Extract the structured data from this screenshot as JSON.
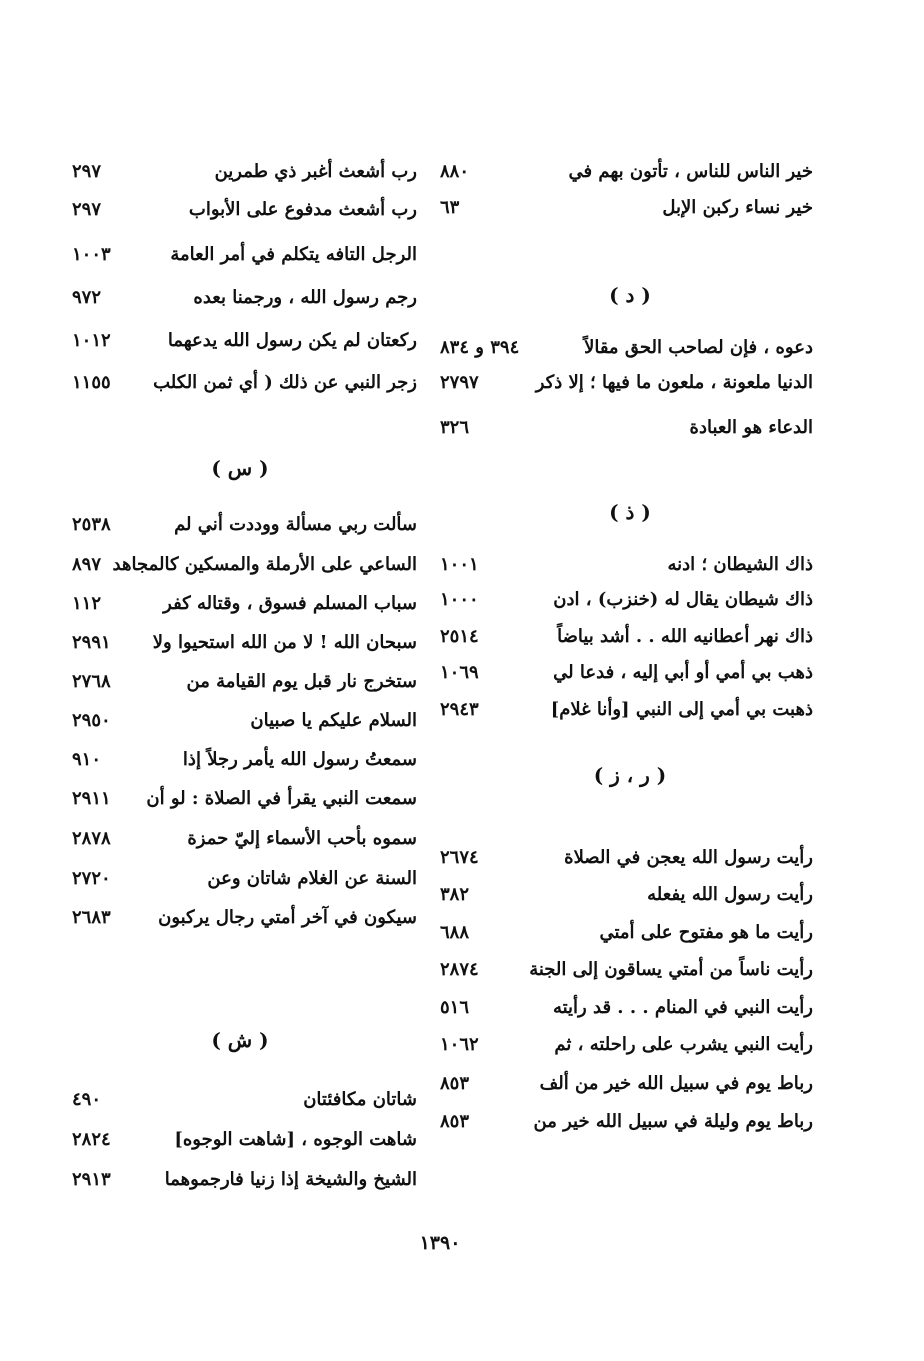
{
  "right_column": {
    "sections": [
      {
        "header": "",
        "entries": [
          {
            "text": "خير الناس للناس ، تأتون بهم في",
            "ref": "٨٨٠"
          },
          {
            "text": "خير نساء ركبن الإبل",
            "ref": "٦٣"
          }
        ]
      },
      {
        "header": "( د )",
        "entries": [
          {
            "text": "دعوه ، فإن لصاحب الحق مقالاً",
            "ref": "٣٩٤ و ٨٣٤"
          },
          {
            "text": "الدنيا ملعونة ، ملعون ما فيها ؛ إلا ذكر",
            "ref": "٢٧٩٧"
          },
          {
            "text": "الدعاء هو العبادة",
            "ref": "٣٢٦"
          }
        ]
      },
      {
        "header": "( ذ )",
        "entries": [
          {
            "text": "ذاك الشيطان ؛ ادنه",
            "ref": "١٠٠١"
          },
          {
            "text": "ذاك شيطان يقال له (خنزب) ، ادن",
            "ref": "١٠٠٠"
          },
          {
            "text": "ذاك نهر أعطانيه الله . . أشد بياضاً",
            "ref": "٢٥١٤"
          },
          {
            "text": "ذهب بي أمي أو أبي إليه ، فدعا لي",
            "ref": "١٠٦٩"
          },
          {
            "text": "ذهبت بي أمي إلى النبي [وأنا غلام]",
            "ref": "٢٩٤٣"
          }
        ]
      },
      {
        "header": "( ر ، ز )",
        "entries": [
          {
            "text": "رأيت رسول الله يعجن في الصلاة",
            "ref": "٢٦٧٤"
          },
          {
            "text": "رأيت رسول الله يفعله",
            "ref": "٣٨٢"
          },
          {
            "text": "رأيت ما هو مفتوح على أمتي",
            "ref": "٦٨٨"
          },
          {
            "text": "رأيت ناساً من أمتي يساقون إلى الجنة",
            "ref": "٢٨٧٤"
          },
          {
            "text": "رأيت النبي في المنام . . . قد رأيته",
            "ref": "٥١٦"
          },
          {
            "text": "رأيت النبي يشرب على راحلته ، ثم",
            "ref": "١٠٦٢"
          },
          {
            "text": "رباط يوم في سبيل الله خير من ألف",
            "ref": "٨٥٣"
          },
          {
            "text": "رباط يوم وليلة في سبيل الله خير من",
            "ref": "٨٥٣"
          }
        ]
      }
    ]
  },
  "left_column": {
    "sections": [
      {
        "header": "",
        "entries": [
          {
            "text": "رب أشعث أغبر ذي طمرين",
            "ref": "٢٩٧"
          },
          {
            "text": "رب أشعث مدفوع على الأبواب",
            "ref": "٢٩٧"
          },
          {
            "text": "الرجل التافه يتكلم في أمر العامة",
            "ref": "١٠٠٣"
          },
          {
            "text": "رجم رسول الله ، ورجمنا بعده",
            "ref": "٩٧٢"
          },
          {
            "text": "ركعتان لم يكن رسول الله يدعهما",
            "ref": "١٠١٢"
          },
          {
            "text": "زجر النبي عن ذلك ( أي ثمن الكلب",
            "ref": "١١٥٥"
          }
        ]
      },
      {
        "header": "( س )",
        "entries": [
          {
            "text": "سألت ربي مسألة ووددت أني لم",
            "ref": "٢٥٣٨"
          },
          {
            "text": "الساعي على الأرملة والمسكين كالمجاهد",
            "ref": "٨٩٧"
          },
          {
            "text": "سباب المسلم فسوق ، وقتاله كفر",
            "ref": "١١٢"
          },
          {
            "text": "سبحان الله ! لا من الله استحيوا ولا",
            "ref": "٢٩٩١"
          },
          {
            "text": "ستخرج نار قبل يوم القيامة من",
            "ref": "٢٧٦٨"
          },
          {
            "text": "السلام عليكم يا صبيان",
            "ref": "٢٩٥٠"
          },
          {
            "text": "سمعتُ رسول الله يأمر رجلاً إذا",
            "ref": "٩١٠"
          },
          {
            "text": "سمعت النبي يقرأ في الصلاة : لو أن",
            "ref": "٢٩١١"
          },
          {
            "text": "سموه بأحب الأسماء إليّ حمزة",
            "ref": "٢٨٧٨"
          },
          {
            "text": "السنة عن الغلام شاتان وعن",
            "ref": "٢٧٢٠"
          },
          {
            "text": "سيكون في آخر أمتي رجال يركبون",
            "ref": "٢٦٨٣"
          }
        ]
      },
      {
        "header": "( ش )",
        "entries": [
          {
            "text": "شاتان مكافئتان",
            "ref": "٤٩٠"
          },
          {
            "text": "شاهت الوجوه ، [شاهت الوجوه]",
            "ref": "٢٨٢٤"
          },
          {
            "text": "الشيخ والشيخة إذا زنيا فارجموهما",
            "ref": "٢٩١٣"
          }
        ]
      }
    ]
  },
  "page_number": "١٣٩٠"
}
